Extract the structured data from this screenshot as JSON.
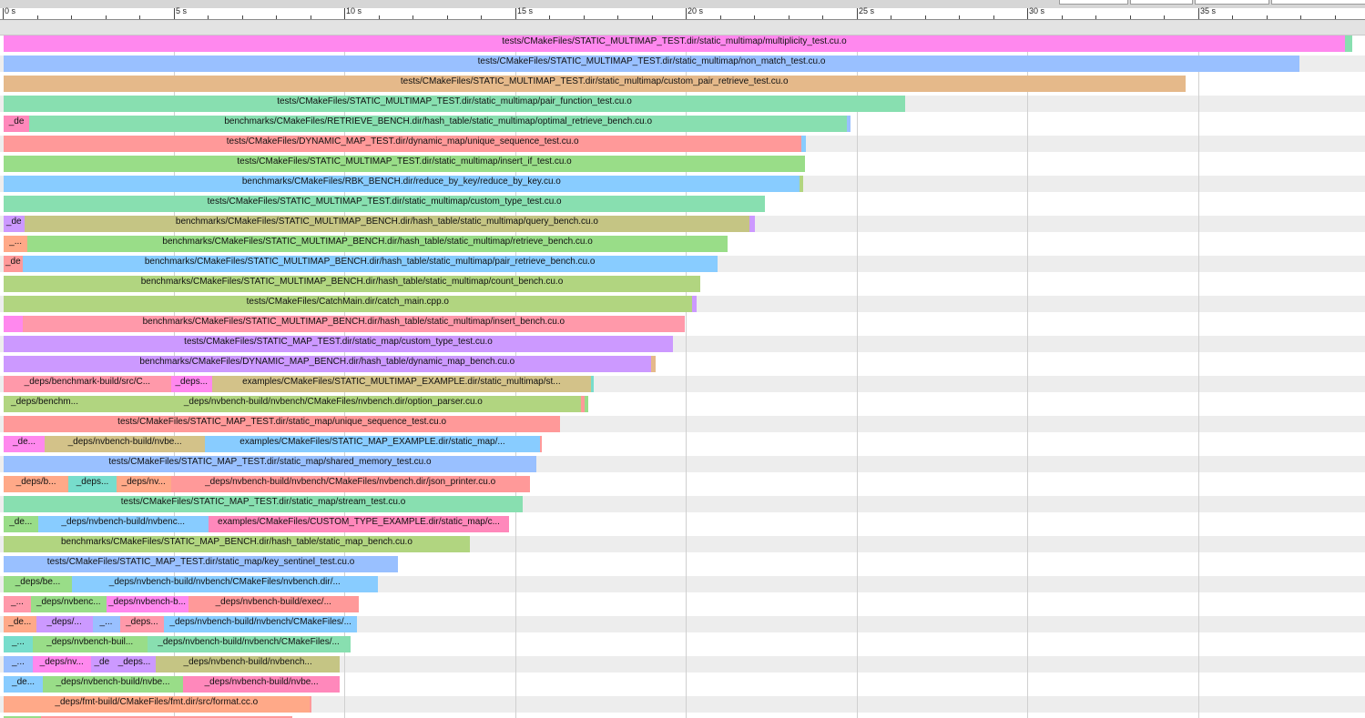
{
  "chart_data": {
    "type": "timeline",
    "x_unit": "s",
    "x_range": [
      0,
      40
    ],
    "tick_labels": [
      "0 s",
      "5 s",
      "10 s",
      "15 s",
      "20 s",
      "25 s",
      "30 s",
      "35 s"
    ],
    "tick_values": [
      0,
      5,
      10,
      15,
      20,
      25,
      30,
      35
    ],
    "colors": [
      "#ff88ee",
      "#99c0ff",
      "#e5b98a",
      "#88dfb0",
      "#ff88bb",
      "#ff9999",
      "#99dd88",
      "#88ccff",
      "#c5c584",
      "#b1d580",
      "#cc99ff",
      "#d3c289",
      "#ffa988",
      "#77ddcc"
    ],
    "rows": [
      {
        "segments": [
          {
            "start": 0.0,
            "end": 39.28,
            "label": "tests/CMakeFiles/STATIC_MULTIMAP_TEST.dir/static_multimap/multiplicity_test.cu.o",
            "color": "#ff88ee"
          },
          {
            "start": 39.28,
            "end": 39.5,
            "label": "",
            "color": "#88dfb0"
          }
        ]
      },
      {
        "segments": [
          {
            "start": 0.0,
            "end": 37.95,
            "label": "tests/CMakeFiles/STATIC_MULTIMAP_TEST.dir/static_multimap/non_match_test.cu.o",
            "color": "#99c0ff"
          }
        ]
      },
      {
        "segments": [
          {
            "start": 0.0,
            "end": 34.6,
            "label": "tests/CMakeFiles/STATIC_MULTIMAP_TEST.dir/static_multimap/custom_pair_retrieve_test.cu.o",
            "color": "#e5b98a"
          }
        ]
      },
      {
        "segments": [
          {
            "start": 0.0,
            "end": 26.4,
            "label": "tests/CMakeFiles/STATIC_MULTIMAP_TEST.dir/static_multimap/pair_function_test.cu.o",
            "color": "#88dfb0"
          }
        ]
      },
      {
        "segments": [
          {
            "start": 0.0,
            "end": 0.75,
            "label": "_de",
            "color": "#ff88bb"
          },
          {
            "start": 0.75,
            "end": 24.7,
            "label": "benchmarks/CMakeFiles/RETRIEVE_BENCH.dir/hash_table/static_multimap/optimal_retrieve_bench.cu.o",
            "color": "#88dfb0"
          },
          {
            "start": 24.7,
            "end": 24.8,
            "label": "",
            "color": "#99c0ff"
          }
        ]
      },
      {
        "segments": [
          {
            "start": 0.0,
            "end": 23.37,
            "label": "tests/CMakeFiles/DYNAMIC_MAP_TEST.dir/dynamic_map/unique_sequence_test.cu.o",
            "color": "#ff9999"
          },
          {
            "start": 23.37,
            "end": 23.5,
            "label": "",
            "color": "#88ccff"
          }
        ]
      },
      {
        "segments": [
          {
            "start": 0.0,
            "end": 23.47,
            "label": "tests/CMakeFiles/STATIC_MULTIMAP_TEST.dir/static_multimap/insert_if_test.cu.o",
            "color": "#99dd88"
          }
        ]
      },
      {
        "segments": [
          {
            "start": 0.0,
            "end": 23.3,
            "label": "benchmarks/CMakeFiles/RBK_BENCH.dir/reduce_by_key/reduce_by_key.cu.o",
            "color": "#88ccff"
          },
          {
            "start": 23.3,
            "end": 23.4,
            "label": "",
            "color": "#b1d580"
          }
        ]
      },
      {
        "segments": [
          {
            "start": 0.0,
            "end": 22.3,
            "label": "tests/CMakeFiles/STATIC_MULTIMAP_TEST.dir/static_multimap/custom_type_test.cu.o",
            "color": "#88dfb0"
          }
        ]
      },
      {
        "segments": [
          {
            "start": 0.0,
            "end": 0.6,
            "label": "_de",
            "color": "#cc99ff"
          },
          {
            "start": 0.6,
            "end": 21.85,
            "label": "benchmarks/CMakeFiles/STATIC_MULTIMAP_BENCH.dir/hash_table/static_multimap/query_bench.cu.o",
            "color": "#c5c584"
          },
          {
            "start": 21.85,
            "end": 22.0,
            "label": "",
            "color": "#cc99ff"
          }
        ]
      },
      {
        "segments": [
          {
            "start": 0.0,
            "end": 0.7,
            "label": "_...",
            "color": "#ffa988"
          },
          {
            "start": 0.7,
            "end": 21.2,
            "label": "benchmarks/CMakeFiles/STATIC_MULTIMAP_BENCH.dir/hash_table/static_multimap/retrieve_bench.cu.o",
            "color": "#99dd88"
          }
        ]
      },
      {
        "segments": [
          {
            "start": 0.0,
            "end": 0.55,
            "label": "_de",
            "color": "#ff9999"
          },
          {
            "start": 0.55,
            "end": 20.9,
            "label": "benchmarks/CMakeFiles/STATIC_MULTIMAP_BENCH.dir/hash_table/static_multimap/pair_retrieve_bench.cu.o",
            "color": "#88ccff"
          }
        ]
      },
      {
        "segments": [
          {
            "start": 0.0,
            "end": 20.4,
            "label": "benchmarks/CMakeFiles/STATIC_MULTIMAP_BENCH.dir/hash_table/static_multimap/count_bench.cu.o",
            "color": "#b1d580"
          }
        ]
      },
      {
        "segments": [
          {
            "start": 0.0,
            "end": 20.15,
            "label": "tests/CMakeFiles/CatchMain.dir/catch_main.cpp.o",
            "color": "#b1d580"
          },
          {
            "start": 20.15,
            "end": 20.3,
            "label": "",
            "color": "#cc99ff"
          }
        ]
      },
      {
        "segments": [
          {
            "start": 0.0,
            "end": 0.55,
            "label": "",
            "color": "#ff88ee"
          },
          {
            "start": 0.55,
            "end": 19.95,
            "label": "benchmarks/CMakeFiles/STATIC_MULTIMAP_BENCH.dir/hash_table/static_multimap/insert_bench.cu.o",
            "color": "#ff99aa"
          }
        ]
      },
      {
        "segments": [
          {
            "start": 0.0,
            "end": 19.6,
            "label": "tests/CMakeFiles/STATIC_MAP_TEST.dir/static_map/custom_type_test.cu.o",
            "color": "#cc99ff"
          }
        ]
      },
      {
        "segments": [
          {
            "start": 0.0,
            "end": 18.95,
            "label": "benchmarks/CMakeFiles/DYNAMIC_MAP_BENCH.dir/hash_table/dynamic_map_bench.cu.o",
            "color": "#cc99ff"
          },
          {
            "start": 18.95,
            "end": 19.08,
            "label": "",
            "color": "#e5b98a"
          }
        ]
      },
      {
        "segments": [
          {
            "start": 0.0,
            "end": 4.9,
            "label": "_deps/benchmark-build/src/C...",
            "color": "#ff99aa"
          },
          {
            "start": 4.9,
            "end": 6.1,
            "label": "_deps...",
            "color": "#ff88ee"
          },
          {
            "start": 6.1,
            "end": 17.2,
            "label": "examples/CMakeFiles/STATIC_MULTIMAP_EXAMPLE.dir/static_multimap/st...",
            "color": "#d3c289"
          },
          {
            "start": 17.2,
            "end": 17.28,
            "label": "",
            "color": "#77ddcc"
          }
        ]
      },
      {
        "segments": [
          {
            "start": 0.0,
            "end": 2.4,
            "label": "_deps/benchm...",
            "color": "#b1d580"
          },
          {
            "start": 2.4,
            "end": 16.9,
            "label": "_deps/nvbench-build/nvbench/CMakeFiles/nvbench.dir/option_parser.cu.o",
            "color": "#b1d580"
          },
          {
            "start": 16.9,
            "end": 17.0,
            "label": "",
            "color": "#ff9999"
          },
          {
            "start": 17.0,
            "end": 17.12,
            "label": "",
            "color": "#99dd88"
          }
        ]
      },
      {
        "segments": [
          {
            "start": 0.0,
            "end": 16.3,
            "label": "tests/CMakeFiles/STATIC_MAP_TEST.dir/static_map/unique_sequence_test.cu.o",
            "color": "#ff9999"
          }
        ]
      },
      {
        "segments": [
          {
            "start": 0.0,
            "end": 1.2,
            "label": "_de...",
            "color": "#ff88ee"
          },
          {
            "start": 1.2,
            "end": 5.9,
            "label": "_deps/nvbench-build/nvbe...",
            "color": "#d3c289"
          },
          {
            "start": 5.9,
            "end": 15.7,
            "label": "examples/CMakeFiles/STATIC_MAP_EXAMPLE.dir/static_map/...",
            "color": "#88ccff"
          },
          {
            "start": 15.7,
            "end": 15.77,
            "label": "",
            "color": "#ff9999"
          }
        ]
      },
      {
        "segments": [
          {
            "start": 0.0,
            "end": 15.6,
            "label": "tests/CMakeFiles/STATIC_MAP_TEST.dir/static_map/shared_memory_test.cu.o",
            "color": "#99c0ff"
          }
        ]
      },
      {
        "segments": [
          {
            "start": 0.0,
            "end": 1.9,
            "label": "_deps/b...",
            "color": "#ffa988"
          },
          {
            "start": 1.9,
            "end": 3.3,
            "label": "_deps...",
            "color": "#77ddcc"
          },
          {
            "start": 3.3,
            "end": 4.9,
            "label": "_deps/nv...",
            "color": "#ffa988"
          },
          {
            "start": 4.9,
            "end": 15.4,
            "label": "_deps/nvbench-build/nvbench/CMakeFiles/nvbench.dir/json_printer.cu.o",
            "color": "#ff9999"
          }
        ]
      },
      {
        "segments": [
          {
            "start": 0.0,
            "end": 15.2,
            "label": "tests/CMakeFiles/STATIC_MAP_TEST.dir/static_map/stream_test.cu.o",
            "color": "#88dfb0"
          }
        ]
      },
      {
        "segments": [
          {
            "start": 0.0,
            "end": 1.0,
            "label": "_de...",
            "color": "#99dd88"
          },
          {
            "start": 1.0,
            "end": 6.0,
            "label": "_deps/nvbench-build/nvbenc...",
            "color": "#88ccff"
          },
          {
            "start": 6.0,
            "end": 14.8,
            "label": "examples/CMakeFiles/CUSTOM_TYPE_EXAMPLE.dir/static_map/c...",
            "color": "#ff88bb"
          }
        ]
      },
      {
        "segments": [
          {
            "start": 0.0,
            "end": 13.65,
            "label": "benchmarks/CMakeFiles/STATIC_MAP_BENCH.dir/hash_table/static_map_bench.cu.o",
            "color": "#b1d580"
          }
        ]
      },
      {
        "segments": [
          {
            "start": 0.0,
            "end": 11.55,
            "label": "tests/CMakeFiles/STATIC_MAP_TEST.dir/static_map/key_sentinel_test.cu.o",
            "color": "#99c0ff"
          }
        ]
      },
      {
        "segments": [
          {
            "start": 0.0,
            "end": 2.0,
            "label": "_deps/be...",
            "color": "#99dd88"
          },
          {
            "start": 2.0,
            "end": 10.95,
            "label": "_deps/nvbench-build/nvbench/CMakeFiles/nvbench.dir/...",
            "color": "#88ccff"
          }
        ]
      },
      {
        "segments": [
          {
            "start": 0.0,
            "end": 0.8,
            "label": "_...",
            "color": "#ff99aa"
          },
          {
            "start": 0.8,
            "end": 3.0,
            "label": "_deps/nvbenc...",
            "color": "#99dd88"
          },
          {
            "start": 3.0,
            "end": 5.4,
            "label": "_deps/nvbench-b...",
            "color": "#ff88ee"
          },
          {
            "start": 5.4,
            "end": 10.4,
            "label": "_deps/nvbench-build/exec/...",
            "color": "#ff9999"
          }
        ]
      },
      {
        "segments": [
          {
            "start": 0.0,
            "end": 0.95,
            "label": "_de...",
            "color": "#ffa988"
          },
          {
            "start": 0.95,
            "end": 2.6,
            "label": "_deps/...",
            "color": "#cc99ff"
          },
          {
            "start": 2.6,
            "end": 3.4,
            "label": "_...",
            "color": "#99c0ff"
          },
          {
            "start": 3.4,
            "end": 4.7,
            "label": "_deps...",
            "color": "#ff99aa"
          },
          {
            "start": 4.7,
            "end": 10.35,
            "label": "_deps/nvbench-build/nvbench/CMakeFiles/...",
            "color": "#88ccff"
          }
        ]
      },
      {
        "segments": [
          {
            "start": 0.0,
            "end": 0.85,
            "label": "_...",
            "color": "#77ddcc"
          },
          {
            "start": 0.85,
            "end": 4.2,
            "label": "_deps/nvbench-buil...",
            "color": "#99dd88"
          },
          {
            "start": 4.2,
            "end": 10.15,
            "label": "_deps/nvbench-build/nvbench/CMakeFiles/...",
            "color": "#88dfb0"
          }
        ]
      },
      {
        "segments": [
          {
            "start": 0.0,
            "end": 0.85,
            "label": "_...",
            "color": "#99c0ff"
          },
          {
            "start": 0.85,
            "end": 2.55,
            "label": "_deps/nv...",
            "color": "#ff88ee"
          },
          {
            "start": 2.55,
            "end": 3.2,
            "label": "_de",
            "color": "#cc99ff"
          },
          {
            "start": 3.2,
            "end": 4.45,
            "label": "_deps...",
            "color": "#cc99ff"
          },
          {
            "start": 4.45,
            "end": 9.85,
            "label": "_deps/nvbench-build/nvbench...",
            "color": "#c5c584"
          }
        ]
      },
      {
        "segments": [
          {
            "start": 0.0,
            "end": 1.15,
            "label": "_de...",
            "color": "#88ccff"
          },
          {
            "start": 1.15,
            "end": 5.25,
            "label": "_deps/nvbench-build/nvbe...",
            "color": "#99dd88"
          },
          {
            "start": 5.25,
            "end": 9.85,
            "label": "_deps/nvbench-build/nvbe...",
            "color": "#ff88bb"
          }
        ]
      },
      {
        "segments": [
          {
            "start": 0.0,
            "end": 8.95,
            "label": "_deps/fmt-build/CMakeFiles/fmt.dir/src/format.cc.o",
            "color": "#ffa988"
          },
          {
            "start": 8.95,
            "end": 9.02,
            "label": "",
            "color": "#ff9999"
          }
        ]
      },
      {
        "segments": [
          {
            "start": 0.0,
            "end": 1.1,
            "label": "",
            "color": "#99dd88"
          },
          {
            "start": 1.1,
            "end": 8.45,
            "label": "",
            "color": "#ff9999"
          }
        ]
      }
    ]
  }
}
